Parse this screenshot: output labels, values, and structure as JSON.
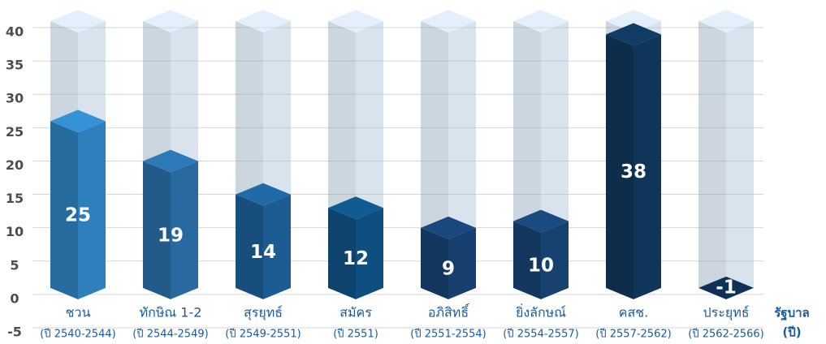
{
  "chart_data": {
    "type": "bar3d",
    "categories": [
      "ชวน",
      "ทักษิณ 1-2",
      "สุรยุทธ์",
      "สมัคร",
      "อภิสิทธิ์",
      "ยิ่งลักษณ์",
      "คสช.",
      "ประยุทธ์"
    ],
    "category_periods": [
      "(ปี 2540-2544)",
      "(ปี 2544-2549)",
      "(ปี 2549-2551)",
      "(ปี 2551)",
      "(ปี 2551-2554)",
      "(ปี 2554-2557)",
      "(ปี 2557-2562)",
      "(ปี 2562-2566)"
    ],
    "values": [
      25,
      19,
      14,
      12,
      9,
      10,
      38,
      -1
    ],
    "colors": [
      "#2e7fbb",
      "#286aa0",
      "#1c5c92",
      "#0f4f80",
      "#163f6e",
      "#17416f",
      "#0f3558",
      "#0d2b4c"
    ],
    "x_axis_label": [
      "รัฐบาล",
      "(ปี)"
    ],
    "ylim": [
      -5,
      40
    ],
    "yticks": [
      -5,
      0,
      5,
      10,
      15,
      20,
      25,
      30,
      35,
      40
    ],
    "grid": true
  }
}
